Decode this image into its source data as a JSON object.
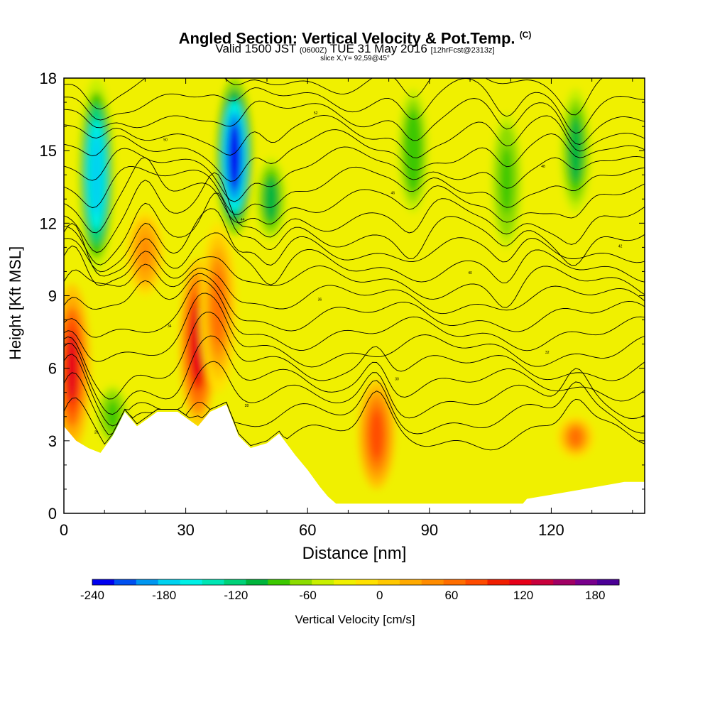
{
  "title": {
    "main": "Angled Section: Vertical Velocity & Pot.Temp.",
    "copyright": "(C)",
    "valid_prefix": "Valid 1500 JST",
    "valid_utc": "(0600Z)",
    "valid_date": "TUE 31 May 2016",
    "forecast": "[12hrFcst@2313z]",
    "slice": "slice X,Y= 92,59@45°"
  },
  "chart_data": {
    "type": "heatmap",
    "xlabel": "Distance [nm]",
    "ylabel": "Height [Kft MSL]",
    "xlim": [
      0,
      143
    ],
    "ylim": [
      0,
      18
    ],
    "xticks": [
      0,
      30,
      60,
      90,
      120
    ],
    "yticks": [
      0,
      3,
      6,
      9,
      12,
      15,
      18
    ],
    "colorbar": {
      "label": "Vertical Velocity [cm/s]",
      "range": [
        -240,
        200
      ],
      "step": 20,
      "ticks": [
        -240,
        -180,
        -120,
        -60,
        0,
        60,
        120,
        180
      ],
      "tick_labels": [
        "-240",
        "-180",
        "-120",
        "-60",
        "0",
        "60",
        "120",
        "180"
      ],
      "colors": [
        "#0000f0",
        "#0050f0",
        "#0096f0",
        "#00d2f0",
        "#00f0e6",
        "#00e6b4",
        "#00d278",
        "#00b43c",
        "#3cc800",
        "#8cdc00",
        "#c8f000",
        "#f0f000",
        "#ffe100",
        "#ffc800",
        "#ffaa00",
        "#ff8c00",
        "#ff6e00",
        "#ff4b00",
        "#f01e00",
        "#e60019",
        "#c8003c",
        "#a00064",
        "#78008c",
        "#4b0096"
      ]
    },
    "updrafts": [
      {
        "x": 2,
        "z_bottom": 2.6,
        "z_top": 9.5,
        "peak_cm_s": 140
      },
      {
        "x": 33,
        "z_bottom": 3.6,
        "z_top": 10.5,
        "peak_cm_s": 150
      },
      {
        "x": 38,
        "z_bottom": 5.0,
        "z_top": 12.0,
        "peak_cm_s": 90
      },
      {
        "x": 20,
        "z_bottom": 9.0,
        "z_top": 12.5,
        "peak_cm_s": 70
      },
      {
        "x": 77,
        "z_bottom": 1.0,
        "z_top": 5.5,
        "peak_cm_s": 110
      },
      {
        "x": 126,
        "z_bottom": 2.3,
        "z_top": 4.0,
        "peak_cm_s": 80
      }
    ],
    "downdrafts": [
      {
        "x": 8,
        "z_bottom": 10.0,
        "z_top": 18.0,
        "peak_cm_s": -180
      },
      {
        "x": 42,
        "z_bottom": 11.5,
        "z_top": 18.0,
        "peak_cm_s": -240
      },
      {
        "x": 51,
        "z_bottom": 11.0,
        "z_top": 15.0,
        "peak_cm_s": -90
      },
      {
        "x": 86,
        "z_bottom": 12.0,
        "z_top": 18.0,
        "peak_cm_s": -80
      },
      {
        "x": 109,
        "z_bottom": 10.5,
        "z_top": 17.0,
        "peak_cm_s": -70
      },
      {
        "x": 126,
        "z_bottom": 12.0,
        "z_top": 18.0,
        "peak_cm_s": -100
      },
      {
        "x": 12,
        "z_bottom": 2.6,
        "z_top": 5.5,
        "peak_cm_s": -70
      }
    ],
    "terrain": [
      [
        0,
        3.6
      ],
      [
        3,
        3.0
      ],
      [
        6,
        2.7
      ],
      [
        9,
        2.5
      ],
      [
        12,
        3.2
      ],
      [
        15,
        4.2
      ],
      [
        18,
        3.6
      ],
      [
        23,
        4.2
      ],
      [
        28,
        4.2
      ],
      [
        33,
        3.6
      ],
      [
        36,
        4.2
      ],
      [
        40,
        4.5
      ],
      [
        43,
        3.2
      ],
      [
        46,
        2.7
      ],
      [
        50,
        2.9
      ],
      [
        53,
        3.3
      ],
      [
        57,
        2.4
      ],
      [
        60,
        1.8
      ],
      [
        63,
        1.1
      ],
      [
        65,
        0.7
      ],
      [
        67,
        0.4
      ],
      [
        113,
        0.4
      ],
      [
        114,
        0.6
      ],
      [
        128,
        1.0
      ],
      [
        138,
        1.3
      ],
      [
        143,
        1.3
      ]
    ],
    "isentropes": {
      "count": 22,
      "label_sample": [
        "26",
        "28",
        "30",
        "32",
        "34",
        "36",
        "40",
        "42",
        "44",
        "46",
        "48",
        "50",
        "52"
      ]
    }
  },
  "colors": {
    "plot_fill": "#f0f000",
    "frame": "#000000",
    "terrain": "#ffffff",
    "contour": "#000000"
  }
}
